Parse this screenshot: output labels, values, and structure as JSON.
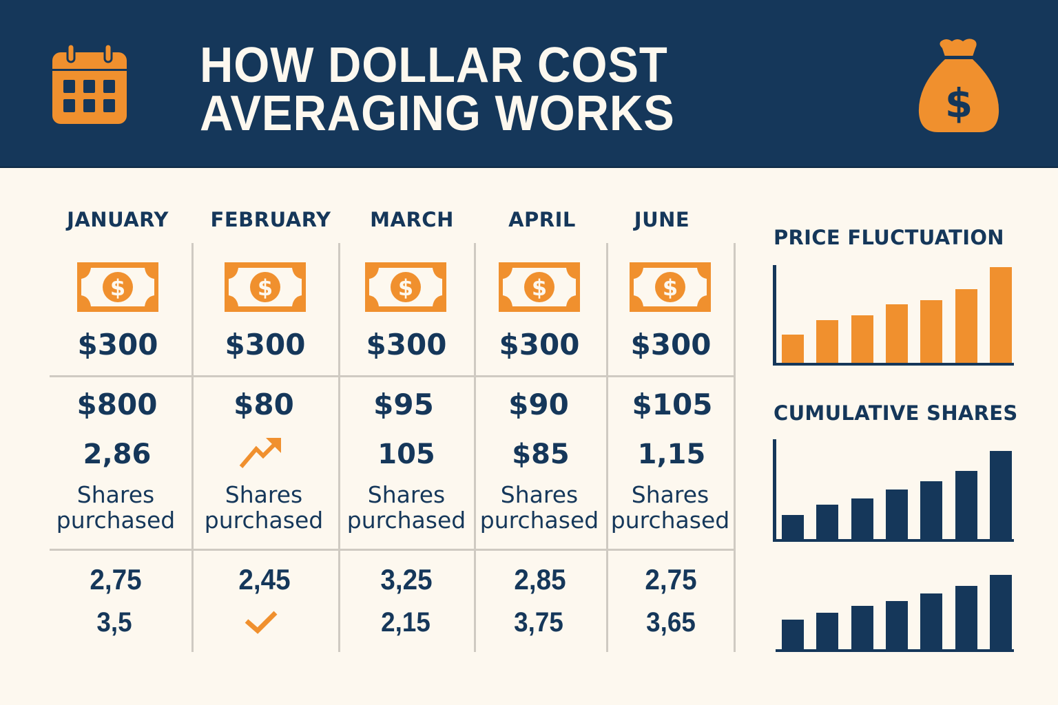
{
  "header": {
    "title_line1": "HOW DOLLAR COST",
    "title_line2": "AVERAGING WORKS",
    "left_icon": "calendar-icon",
    "right_icon": "money-bag-icon",
    "bg_color": "#15375a",
    "accent_color": "#f0902e"
  },
  "table": {
    "columns": [
      {
        "month": "JANUARY",
        "investment_icon": "dollar-bill-icon",
        "investment": "$300",
        "price": "$800",
        "shares": "2,86",
        "shares_label_1": "Shares",
        "shares_label_2": "purchased",
        "row3_top": "2,75",
        "row3_bottom": "3,5"
      },
      {
        "month": "FEBRUARY",
        "investment_icon": "dollar-bill-icon",
        "investment": "$300",
        "price": "$80",
        "shares_icon": "trending-up-icon",
        "shares_label_1": "Shares",
        "shares_label_2": "purchased",
        "row3_top": "2,45",
        "row3_bottom_icon": "checkmark-icon"
      },
      {
        "month": "MARCH",
        "investment_icon": "dollar-bill-icon",
        "investment": "$300",
        "price": "$95",
        "shares": "105",
        "shares_label_1": "Shares",
        "shares_label_2": "purchased",
        "row3_top": "3,25",
        "row3_bottom": "2,15"
      },
      {
        "month": "APRIL",
        "investment_icon": "dollar-bill-icon",
        "investment": "$300",
        "price": "$90",
        "shares": "$85",
        "shares_label_1": "Shares",
        "shares_label_2": "purchased",
        "row3_top": "2,85",
        "row3_bottom": "3,75"
      },
      {
        "month": "JUNE",
        "investment_icon": "dollar-bill-icon",
        "investment": "$300",
        "price": "$105",
        "shares": "1,15",
        "shares_label_1": "Shares",
        "shares_label_2": "purchased",
        "row3_top": "2,75",
        "row3_bottom": "3,65"
      }
    ]
  },
  "chart_data": [
    {
      "type": "bar",
      "title": "PRICE FLUCTUATION",
      "categories": [
        "1",
        "2",
        "3",
        "4",
        "5",
        "6",
        "7"
      ],
      "values": [
        41,
        62,
        69,
        85,
        91,
        107,
        139
      ],
      "xlabel": "",
      "ylabel": "",
      "ylim": [
        0,
        145
      ],
      "grid": false,
      "legend": "none",
      "color": "#f0902e",
      "note": "Unlabeled axes; values are relative bar heights in pixels"
    },
    {
      "type": "bar",
      "title": "CUMULATIVE SHARES",
      "categories": [
        "1",
        "2",
        "3",
        "4",
        "5",
        "6",
        "7"
      ],
      "values": [
        35,
        50,
        59,
        72,
        84,
        99,
        128
      ],
      "xlabel": "",
      "ylabel": "",
      "ylim": [
        0,
        145
      ],
      "grid": false,
      "legend": "none",
      "color": "#15375a",
      "note": "Unlabeled axes; values are relative bar heights in pixels"
    },
    {
      "type": "bar",
      "title": "",
      "categories": [
        "1",
        "2",
        "3",
        "4",
        "5",
        "6",
        "7"
      ],
      "values": [
        43,
        53,
        63,
        70,
        81,
        92,
        108
      ],
      "xlabel": "",
      "ylabel": "",
      "ylim": [
        0,
        145
      ],
      "grid": false,
      "legend": "none",
      "color": "#15375a",
      "note": "Untitled chart with baseline only, no y-axis"
    }
  ]
}
